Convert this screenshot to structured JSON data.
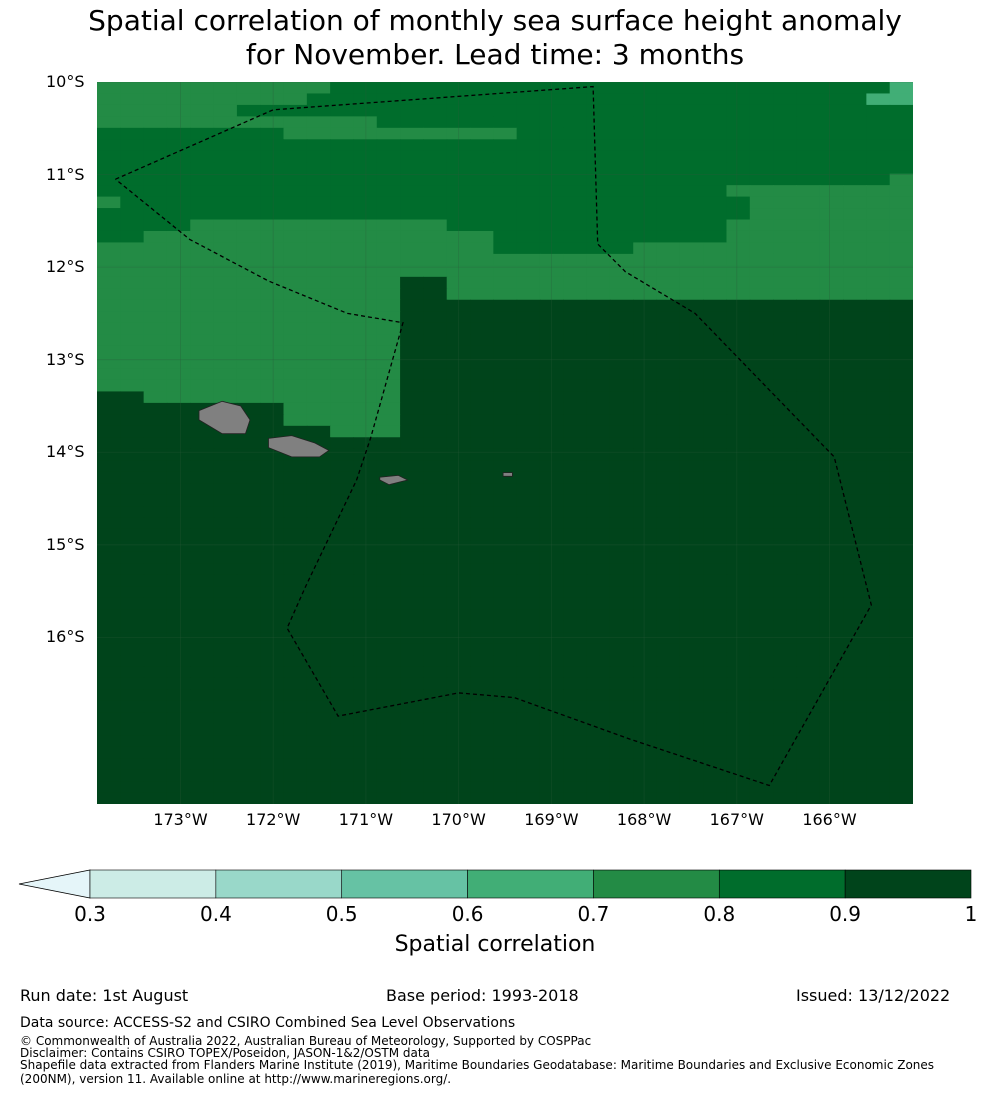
{
  "title_line1": "Spatial correlation of monthly sea surface height anomaly",
  "title_line2": "for November. Lead time: 3 months",
  "lat_labels": [
    "10°S",
    "11°S",
    "12°S",
    "13°S",
    "14°S",
    "15°S",
    "16°S"
  ],
  "lon_labels": [
    "173°W",
    "172°W",
    "171°W",
    "170°W",
    "169°W",
    "168°W",
    "167°W",
    "166°W"
  ],
  "colorbar": {
    "ticks": [
      "0.3",
      "0.4",
      "0.5",
      "0.6",
      "0.7",
      "0.8",
      "0.9",
      "1"
    ],
    "colors": [
      "#ccece6",
      "#99d8c9",
      "#66c2a4",
      "#41ae76",
      "#238b45",
      "#006d2c",
      "#00441b"
    ],
    "under_color": "#e5f5f9",
    "label": "Spatial correlation"
  },
  "footer": {
    "run_date": "Run date: 1st August",
    "base_period": "Base period: 1993-2018",
    "issued": "Issued: 13/12/2022",
    "data_source": "Data source: ACCESS-S2 and CSIRO Combined Sea Level Observations",
    "copyright": "© Commonwealth of Australia 2022, Australian Bureau of Meteorology, Supported by COSPPac",
    "disclaimer": "Disclaimer: Contains CSIRO TOPEX/Poseidon, JASON-1&2/OSTM data",
    "shapefile1": "Shapefile data extracted from Flanders Marine Institute (2019), Maritime Boundaries Geodatabase: Maritime Boundaries and Exclusive Economic Zones",
    "shapefile2": "(200NM), version 11. Available online at http://www.marineregions.org/."
  },
  "map_data": {
    "lon_range": [
      -173.9,
      -165.1
    ],
    "lat_range": [
      -17.8,
      -10.0
    ],
    "grid_rows": [
      "44444444445555555555555555555555553",
      "44444444455555555555555555555555533",
      "44444455555555555555555555555555555",
      "44444444444455555555555555555555555",
      "55555555444444444455555555555555555",
      "55555555555555555555555555555555555",
      "55555555555555555555555555555555555",
      "55555555555555555555555555555555555",
      "55555555555555555555555555555555554",
      "55555555555555555555555555544444444",
      "45555555555555555555555555554444444",
      "55555555555555555555555555554444444",
      "55554444444444455555555555544444444",
      "55444444444444444555555555544444444",
      "44444444444444444555555444444444444",
      "44444444444444444444444444444444444",
      "44444444444444444444444444444444444",
      "44444444444446644444444444444444444",
      "44444444444446644444444444444444444",
      "44444444444446666666666666666666666",
      "44444444444446666666666666666666666",
      "44444444444446666666666666666666666",
      "44444444444446666666666666666666666",
      "44444444444446666666666666666666666",
      "44444444444446666666666666666666666",
      "44444444444446666666666666666666666",
      "44444444444446666666666666666666666",
      "66444444444446666666666666666666666",
      "66666666444446666666666666666666666",
      "66666666444446666666666666666666666",
      "66666666664446666666666666666666666",
      "66666666666666666666666666666666666",
      "66666666666666666666666666666666666",
      "66666666666666666666666666666666666",
      "66666666666666666666666666666666666",
      "66666666666666666666666666666666666",
      "66666666666666666666666666666666666",
      "66666666666666666666666666666666666",
      "66666666666666666666666666666666666",
      "66666666666666666666666666666666666",
      "66666666666666666666666666666666666",
      "66666666666666666666666666666666666",
      "66666666666666666666666666666666666",
      "66666666666666666666666666666666666",
      "66666666666666666666666666666666666",
      "66666666666666666666666666666666666",
      "66666666666666666666666666666666666",
      "66666666666666666666666666666666666",
      "66666666666666666666666666666666666",
      "66666666666666666666666666666666666",
      "66666666666666666666666666666666666",
      "66666666666666666666666666666666666",
      "66666666666666666666666666666666666",
      "66666666666666666666666666666666666",
      "66666666666666666666666666666666666",
      "66666666666666666666666666666666666",
      "66666666666666666666666666666666666",
      "66666666666666666666666666666666666",
      "66666666666666666666666666666666666",
      "66666666666666666666666666666666666",
      "66666666666666666666666666666666666",
      "66666666666666666666666666666666666",
      "66666666666666666666666666666666666"
    ],
    "eez_boundary": [
      [
        -173.7,
        -11.05
      ],
      [
        -172.0,
        -10.3
      ],
      [
        -168.55,
        -10.05
      ],
      [
        -168.5,
        -11.75
      ],
      [
        -168.2,
        -12.05
      ],
      [
        -167.45,
        -12.5
      ],
      [
        -165.95,
        -14.05
      ],
      [
        -165.55,
        -15.65
      ],
      [
        -166.65,
        -17.6
      ],
      [
        -168.15,
        -17.1
      ],
      [
        -169.4,
        -16.65
      ],
      [
        -170.0,
        -16.6
      ],
      [
        -171.3,
        -16.85
      ],
      [
        -171.85,
        -15.9
      ],
      [
        -171.65,
        -15.45
      ],
      [
        -171.1,
        -14.3
      ],
      [
        -170.95,
        -13.85
      ],
      [
        -170.6,
        -12.6
      ],
      [
        -171.2,
        -12.5
      ],
      [
        -172.05,
        -12.15
      ],
      [
        -172.9,
        -11.7
      ],
      [
        -173.7,
        -11.05
      ]
    ],
    "islands": [
      [
        [
          -172.8,
          -13.55
        ],
        [
          -172.55,
          -13.45
        ],
        [
          -172.35,
          -13.5
        ],
        [
          -172.25,
          -13.65
        ],
        [
          -172.3,
          -13.8
        ],
        [
          -172.55,
          -13.8
        ],
        [
          -172.8,
          -13.65
        ],
        [
          -172.8,
          -13.55
        ]
      ],
      [
        [
          -172.05,
          -13.85
        ],
        [
          -171.8,
          -13.82
        ],
        [
          -171.55,
          -13.9
        ],
        [
          -171.4,
          -13.98
        ],
        [
          -171.5,
          -14.05
        ],
        [
          -171.8,
          -14.05
        ],
        [
          -172.05,
          -13.95
        ],
        [
          -172.05,
          -13.85
        ]
      ],
      [
        [
          -170.85,
          -14.27
        ],
        [
          -170.65,
          -14.25
        ],
        [
          -170.55,
          -14.3
        ],
        [
          -170.75,
          -14.35
        ],
        [
          -170.85,
          -14.3
        ],
        [
          -170.85,
          -14.27
        ]
      ],
      [
        [
          -169.52,
          -14.22
        ],
        [
          -169.42,
          -14.22
        ],
        [
          -169.42,
          -14.26
        ],
        [
          -169.52,
          -14.26
        ],
        [
          -169.52,
          -14.22
        ]
      ]
    ]
  }
}
